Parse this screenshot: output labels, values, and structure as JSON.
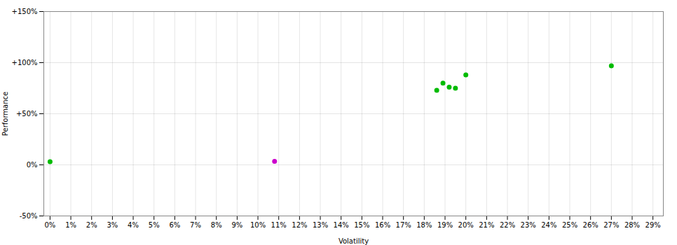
{
  "chart_data": {
    "type": "scatter",
    "xlabel": "Volatility",
    "ylabel": "Performance",
    "xlim": [
      -0.003,
      0.295
    ],
    "ylim": [
      -0.5,
      1.5
    ],
    "xticks": [
      {
        "value": 0,
        "label": "0%"
      },
      {
        "value": 0.01,
        "label": "1%"
      },
      {
        "value": 0.02,
        "label": "2%"
      },
      {
        "value": 0.03,
        "label": "3%"
      },
      {
        "value": 0.04,
        "label": "4%"
      },
      {
        "value": 0.05,
        "label": "5%"
      },
      {
        "value": 0.06,
        "label": "6%"
      },
      {
        "value": 0.07,
        "label": "7%"
      },
      {
        "value": 0.08,
        "label": "8%"
      },
      {
        "value": 0.09,
        "label": "9%"
      },
      {
        "value": 0.1,
        "label": "10%"
      },
      {
        "value": 0.11,
        "label": "11%"
      },
      {
        "value": 0.12,
        "label": "12%"
      },
      {
        "value": 0.13,
        "label": "13%"
      },
      {
        "value": 0.14,
        "label": "14%"
      },
      {
        "value": 0.15,
        "label": "15%"
      },
      {
        "value": 0.16,
        "label": "16%"
      },
      {
        "value": 0.17,
        "label": "17%"
      },
      {
        "value": 0.18,
        "label": "18%"
      },
      {
        "value": 0.19,
        "label": "19%"
      },
      {
        "value": 0.2,
        "label": "20%"
      },
      {
        "value": 0.21,
        "label": "21%"
      },
      {
        "value": 0.22,
        "label": "22%"
      },
      {
        "value": 0.23,
        "label": "23%"
      },
      {
        "value": 0.24,
        "label": "24%"
      },
      {
        "value": 0.25,
        "label": "25%"
      },
      {
        "value": 0.26,
        "label": "26%"
      },
      {
        "value": 0.27,
        "label": "27%"
      },
      {
        "value": 0.28,
        "label": "28%"
      },
      {
        "value": 0.29,
        "label": "29%"
      }
    ],
    "yticks": [
      {
        "value": -0.5,
        "label": "-50%"
      },
      {
        "value": 0,
        "label": "0%"
      },
      {
        "value": 0.5,
        "label": "+50%"
      },
      {
        "value": 1,
        "label": "+100%"
      },
      {
        "value": 1.5,
        "label": "+150%"
      }
    ],
    "grid": true,
    "marker": "circle",
    "series": [
      {
        "color": "#00bb00",
        "x": [
          1e-05,
          0.186,
          0.189,
          0.192,
          0.195,
          0.2,
          0.27
        ],
        "values": [
          0.03,
          0.73,
          0.8,
          0.76,
          0.75,
          0.88,
          0.97
        ]
      },
      {
        "color": "#cc00cc",
        "x": [
          0.108
        ],
        "values": [
          0.035
        ]
      }
    ]
  }
}
